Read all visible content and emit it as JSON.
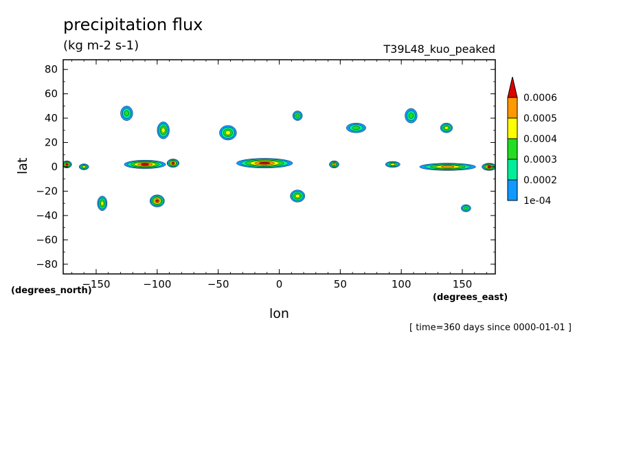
{
  "chart_data": {
    "type": "heatmap",
    "title": "precipitation flux",
    "units": "(kg m-2 s-1)",
    "subtitle": "T39L48_kuo_peaked",
    "xlabel": "lon",
    "ylabel": "lat",
    "x_units_label": "(degrees_east)",
    "y_units_label": "(degrees_north)",
    "footer": "[ time=360 days since 0000-01-01 ]",
    "xlim": [
      -177,
      177
    ],
    "ylim": [
      -88,
      88
    ],
    "xticks": [
      -150,
      -100,
      -50,
      0,
      50,
      100,
      150
    ],
    "yticks": [
      80,
      60,
      40,
      20,
      0,
      -20,
      -40,
      -60,
      -80
    ],
    "levels": [
      "0.0006",
      "0.0005",
      "0.0004",
      "0.0003",
      "0.0002",
      "1e-04"
    ],
    "level_colors": [
      "#dd0000",
      "#ff9900",
      "#ffff00",
      "#22dd22",
      "#00ee99",
      "#1199ff"
    ],
    "features": [
      {
        "lon": -174,
        "lat": 2,
        "dlon": 8,
        "dlat": 6,
        "level": 5
      },
      {
        "lon": -160,
        "lat": 0,
        "dlon": 8,
        "dlat": 5,
        "level": 3
      },
      {
        "lon": -110,
        "lat": 2,
        "dlon": 34,
        "dlat": 7,
        "level": 5
      },
      {
        "lon": -87,
        "lat": 3,
        "dlon": 10,
        "dlat": 7,
        "level": 5
      },
      {
        "lon": -12,
        "lat": 3,
        "dlon": 46,
        "dlat": 8,
        "level": 5
      },
      {
        "lon": 45,
        "lat": 2,
        "dlon": 8,
        "dlat": 6,
        "level": 4
      },
      {
        "lon": 93,
        "lat": 2,
        "dlon": 12,
        "dlat": 5,
        "level": 3
      },
      {
        "lon": 138,
        "lat": 0,
        "dlon": 46,
        "dlat": 6,
        "level": 4
      },
      {
        "lon": 172,
        "lat": 0,
        "dlon": 12,
        "dlat": 6,
        "level": 5
      },
      {
        "lon": -145,
        "lat": -30,
        "dlon": 8,
        "dlat": 12,
        "level": 3
      },
      {
        "lon": -100,
        "lat": -28,
        "dlon": 12,
        "dlat": 10,
        "level": 5
      },
      {
        "lon": 15,
        "lat": -24,
        "dlon": 12,
        "dlat": 10,
        "level": 3
      },
      {
        "lon": -42,
        "lat": 28,
        "dlon": 14,
        "dlat": 12,
        "level": 3
      },
      {
        "lon": -95,
        "lat": 30,
        "dlon": 10,
        "dlat": 14,
        "level": 3
      },
      {
        "lon": 137,
        "lat": 32,
        "dlon": 10,
        "dlat": 8,
        "level": 3
      },
      {
        "lon": 63,
        "lat": 32,
        "dlon": 16,
        "dlat": 8,
        "level": 2
      },
      {
        "lon": 108,
        "lat": 42,
        "dlon": 10,
        "dlat": 12,
        "level": 2
      },
      {
        "lon": -125,
        "lat": 44,
        "dlon": 10,
        "dlat": 12,
        "level": 2
      },
      {
        "lon": 15,
        "lat": 42,
        "dlon": 8,
        "dlat": 8,
        "level": 2
      },
      {
        "lon": 153,
        "lat": -34,
        "dlon": 8,
        "dlat": 6,
        "level": 2
      }
    ]
  }
}
